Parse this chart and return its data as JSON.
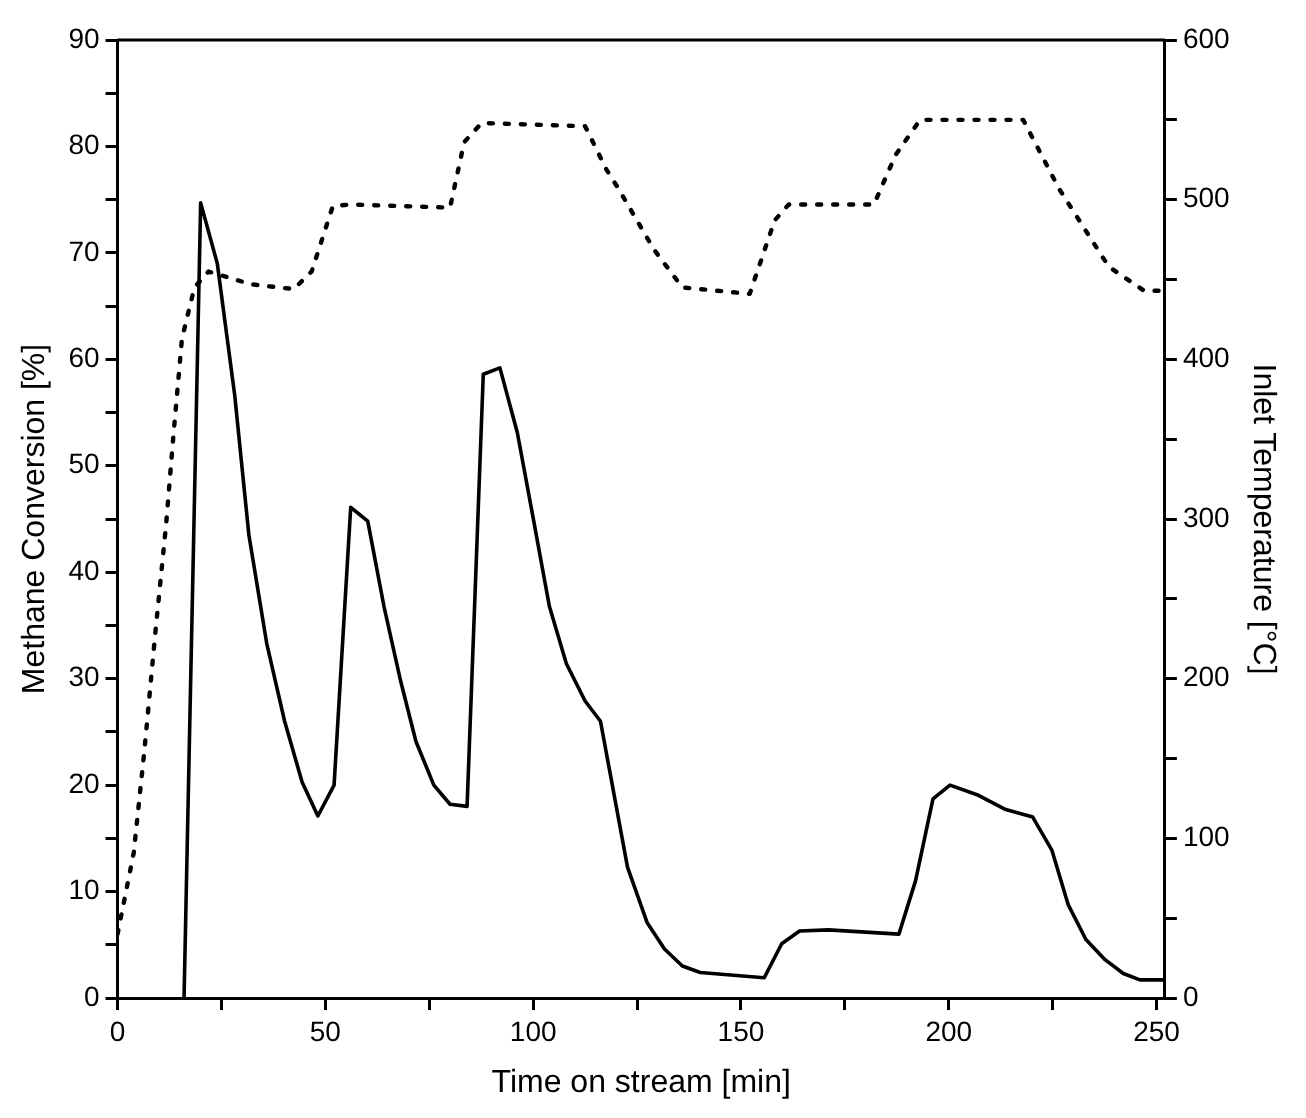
{
  "chart_data": {
    "type": "line",
    "xlabel": "Time on stream [min]",
    "ylabel": "Methane Conversion [%]",
    "y2label": "Inlet Temperature [°C]",
    "xlim": [
      0,
      252
    ],
    "xticks": [
      0,
      {
        "value": 25,
        "label": null
      },
      50,
      {
        "value": 75,
        "label": null
      },
      100,
      {
        "value": 125,
        "label": null
      },
      150,
      {
        "value": 175,
        "label": null
      },
      200,
      {
        "value": 225,
        "label": null
      },
      250
    ],
    "ylim": [
      0,
      90
    ],
    "yticks": [
      0,
      {
        "value": 5,
        "label": null
      },
      10,
      {
        "value": 15,
        "label": null
      },
      20,
      {
        "value": 25,
        "label": null
      },
      30,
      {
        "value": 35,
        "label": null
      },
      40,
      {
        "value": 45,
        "label": null
      },
      50,
      {
        "value": 55,
        "label": null
      },
      60,
      {
        "value": 65,
        "label": null
      },
      70,
      {
        "value": 75,
        "label": null
      },
      80,
      {
        "value": 85,
        "label": null
      },
      90
    ],
    "y2lim": [
      0,
      600
    ],
    "y2ticks": [
      0,
      {
        "value": 50,
        "label": null
      },
      100,
      {
        "value": 150,
        "label": null
      },
      200,
      {
        "value": 250,
        "label": null
      },
      300,
      {
        "value": 350,
        "label": null
      },
      400,
      {
        "value": 450,
        "label": null
      },
      500,
      {
        "value": 550,
        "label": null
      },
      600
    ],
    "grid": false,
    "legend": false,
    "marker": "none",
    "series": [
      {
        "color": "#000000",
        "line_style": "solid",
        "x": [
          16,
          20,
          24,
          28.2,
          31.6,
          35.9,
          40.2,
          44.4,
          48.2,
          52.1,
          56.1,
          60.2,
          64.1,
          68.1,
          71.8,
          76.1,
          80,
          84.1,
          88,
          92,
          96.2,
          100,
          103.9,
          108,
          112.5,
          116.2,
          122.7,
          127.4,
          131.6,
          135.9,
          140.2,
          155.6,
          159.8,
          164.1,
          171,
          188,
          192,
          196.2,
          200.3,
          206.8,
          213.7,
          220.2,
          224.8,
          228.7,
          233,
          237.6,
          242,
          246,
          252
        ],
        "values": [
          0,
          74.7,
          69,
          56.6,
          43.5,
          33.3,
          26,
          20.3,
          17.1,
          20,
          46.1,
          44.8,
          36.8,
          29.8,
          24.1,
          20,
          18.2,
          18,
          58.6,
          59.2,
          53.1,
          45.1,
          36.8,
          31.4,
          27.9,
          26,
          12.3,
          7.1,
          4.6,
          3,
          2.4,
          1.9,
          5.1,
          6.3,
          6.4,
          6,
          11,
          18.7,
          20,
          19.1,
          17.7,
          17,
          13.9,
          8.8,
          5.5,
          3.6,
          2.3,
          1.7,
          1.7
        ]
      },
      {
        "color": "#000000",
        "line_style": "dotted",
        "axis": "y2",
        "x": [
          0,
          3.9,
          6.5,
          9.1,
          11.7,
          13.4,
          15.5,
          18.5,
          21.9,
          32.1,
          42.4,
          46.7,
          51.8,
          56.1,
          80,
          83.4,
          87.6,
          112.5,
          117.6,
          120.5,
          129,
          135.9,
          152.1,
          158.1,
          161.5,
          182,
          187.2,
          193.1,
          217.9,
          226.5,
          238.5,
          247,
          252
        ],
        "values": [
          40,
          91,
          156,
          229,
          297,
          351,
          413,
          445,
          455,
          447,
          444,
          455,
          496,
          497,
          495,
          536,
          548,
          546,
          519,
          507,
          469,
          445,
          441,
          487,
          497,
          497,
          528,
          550,
          550,
          507,
          458,
          443,
          443
        ]
      }
    ]
  }
}
